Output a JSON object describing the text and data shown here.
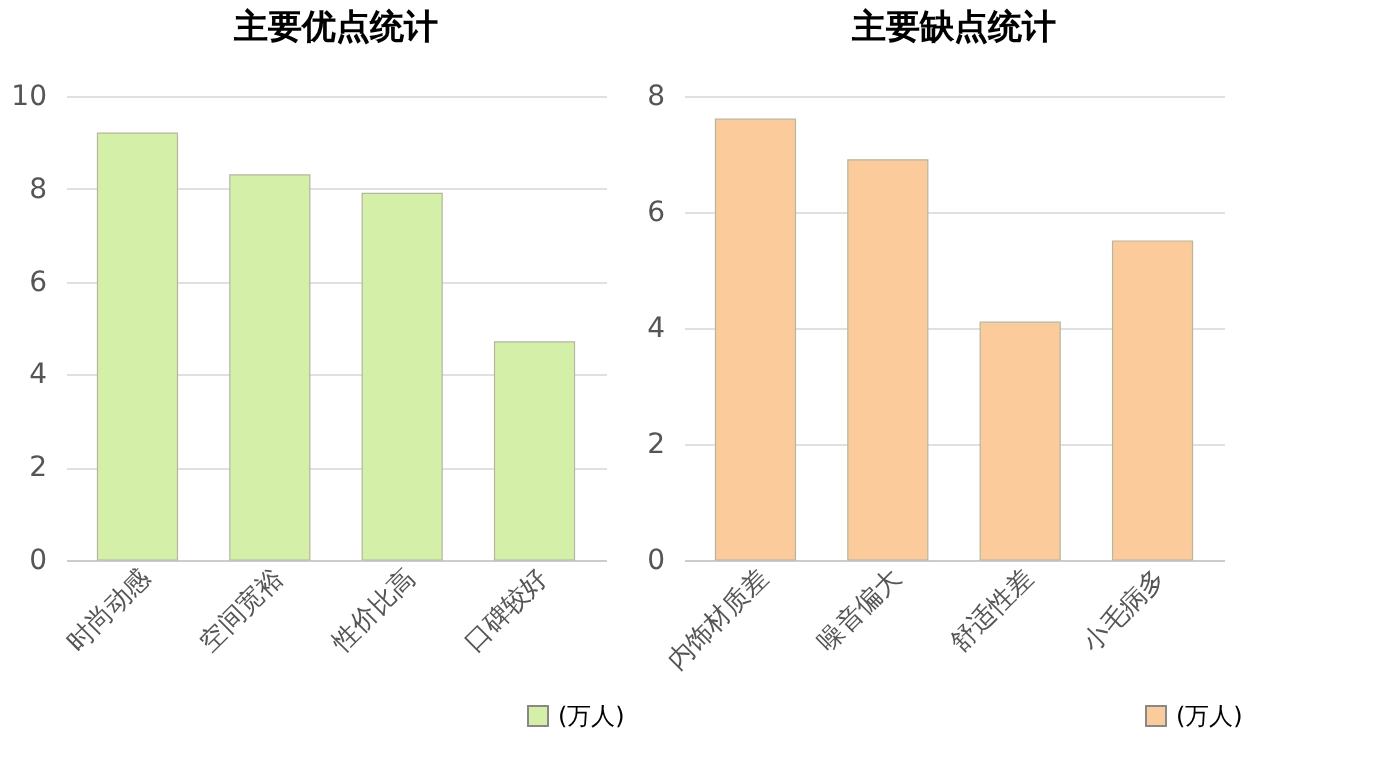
{
  "chart_data": [
    {
      "type": "bar",
      "title": "主要优点统计",
      "categories": [
        "时尚动感",
        "空间宽裕",
        "性价比高",
        "口碑较好"
      ],
      "series": [
        {
          "name": "(万人)",
          "color": "#d4f0a8",
          "values": [
            9.2,
            8.3,
            7.9,
            4.7
          ]
        }
      ],
      "ylim": [
        0,
        10
      ],
      "yticks": [
        0,
        2,
        4,
        6,
        8,
        10
      ],
      "grid": "y",
      "legend": "bottom right"
    },
    {
      "type": "bar",
      "title": "主要缺点统计",
      "categories": [
        "内饰材质差",
        "噪音偏大",
        "舒适性差",
        "小毛病多"
      ],
      "series": [
        {
          "name": "(万人)",
          "color": "#fbcb9c",
          "values": [
            7.6,
            6.9,
            4.1,
            5.5
          ]
        }
      ],
      "ylim": [
        0,
        8
      ],
      "yticks": [
        0,
        2,
        4,
        6,
        8
      ],
      "grid": "y",
      "legend": "bottom right"
    }
  ]
}
